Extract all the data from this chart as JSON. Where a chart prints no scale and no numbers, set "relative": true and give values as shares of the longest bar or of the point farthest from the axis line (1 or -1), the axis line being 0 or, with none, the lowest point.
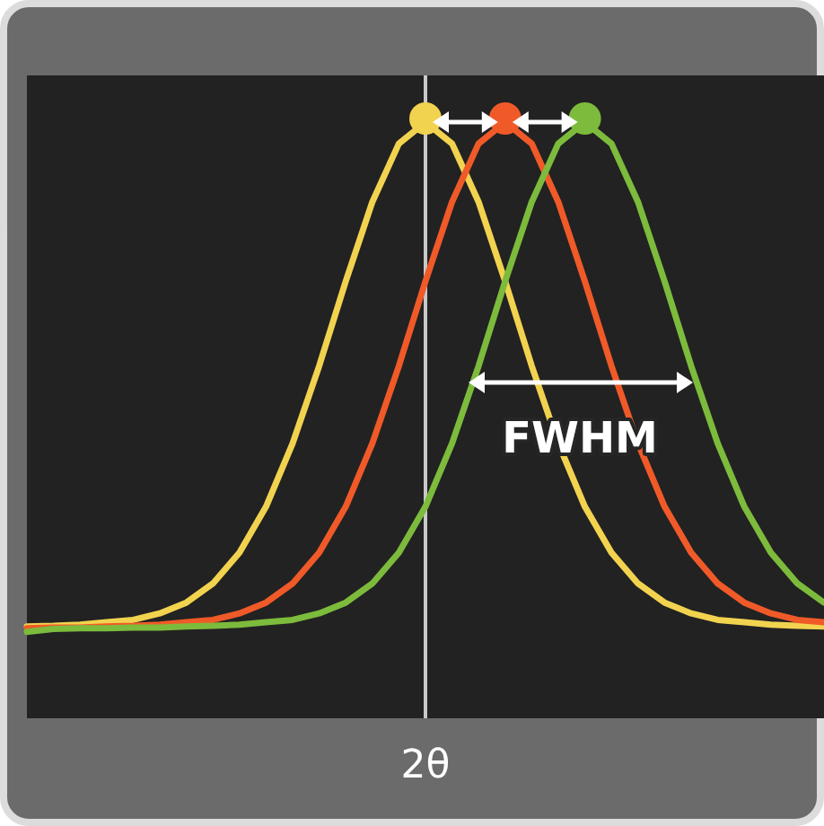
{
  "chart_data": {
    "type": "line",
    "relative": true,
    "xlabel": "2θ",
    "annotations": [
      "FWHM"
    ],
    "categories": [
      null,
      null,
      null,
      null,
      null,
      null,
      null,
      null,
      null,
      null,
      null,
      null,
      null,
      null,
      null,
      null,
      null,
      null,
      null,
      null,
      null,
      null,
      null,
      null,
      null,
      null,
      null,
      null,
      null,
      null,
      null
    ],
    "series": [
      {
        "color": "#f2d34f",
        "values": [
          0.154,
          0.155,
          0.157,
          0.161,
          0.165,
          0.176,
          0.194,
          0.226,
          0.278,
          0.355,
          0.461,
          0.591,
          0.733,
          0.866,
          0.964,
          1,
          0.964,
          0.866,
          0.733,
          0.591,
          0.461,
          0.355,
          0.278,
          0.226,
          0.194,
          0.176,
          0.165,
          0.161,
          0.157,
          0.155,
          0.154
        ]
      },
      {
        "color": "#f05a28",
        "values": [
          0.151,
          0.152,
          0.152,
          0.154,
          0.155,
          0.157,
          0.161,
          0.165,
          0.176,
          0.194,
          0.226,
          0.278,
          0.355,
          0.461,
          0.591,
          0.733,
          0.866,
          0.964,
          1,
          0.964,
          0.866,
          0.733,
          0.591,
          0.461,
          0.355,
          0.278,
          0.226,
          0.194,
          0.176,
          0.165,
          0.161
        ]
      },
      {
        "color": "#7dbb3c",
        "values": [
          0.145,
          0.15,
          0.151,
          0.151,
          0.152,
          0.152,
          0.154,
          0.155,
          0.157,
          0.161,
          0.165,
          0.176,
          0.194,
          0.226,
          0.278,
          0.355,
          0.461,
          0.591,
          0.733,
          0.866,
          0.964,
          1,
          0.964,
          0.866,
          0.733,
          0.591,
          0.461,
          0.355,
          0.278,
          0.226,
          0.194
        ]
      }
    ]
  }
}
